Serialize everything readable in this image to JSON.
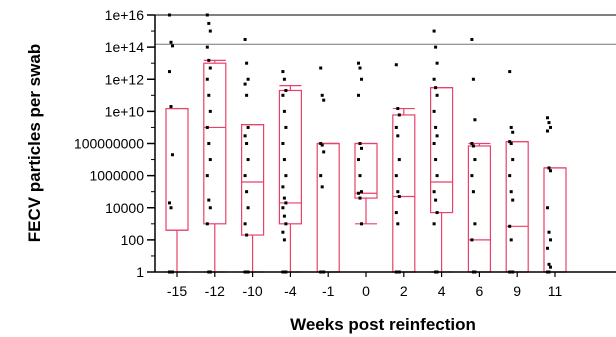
{
  "chart_data": {
    "type": "box",
    "xlabel": "Weeks post reinfection",
    "ylabel": "FECV particles per swab",
    "yscale": "log10",
    "ylim": [
      1,
      1e+16
    ],
    "yticks": [
      "1",
      "100",
      "10000",
      "1000000",
      "100000000",
      "1e+10",
      "1e+12",
      "1e+14",
      "1e+16"
    ],
    "categories": [
      "-15",
      "-12",
      "-10",
      "-4",
      "-1",
      "0",
      "2",
      "4",
      "6",
      "9",
      "11"
    ],
    "reference_line": 150000000000000.0,
    "box_color": "#e8416a",
    "boxes": [
      {
        "x": "-15",
        "whisker_low": 1,
        "q1": 400,
        "median": 400,
        "q3": 15000000000.0,
        "whisker_high": 15000000000.0,
        "points": [
          1e+16,
          200000000000000.0,
          120000000000000.0,
          3000000000000.0,
          20000000000.0,
          20000000.0,
          20000.0,
          10000.0,
          1,
          1
        ]
      },
      {
        "x": "-12",
        "whisker_low": 1,
        "q1": 1000.0,
        "median": 1000000000.0,
        "q3": 10000000000000.0,
        "whisker_high": 15000000000000.0,
        "points": [
          1e+16,
          3000000000000000.0,
          1000000000000000.0,
          100000000000000.0,
          15000000000000.0,
          5000000000000.0,
          1000000000000.0,
          100000000000.0,
          10000000000.0,
          1000000000.0,
          100000000.0,
          10000000.0,
          1000000.0,
          30000.0,
          10000.0,
          1000.0,
          1,
          1
        ]
      },
      {
        "x": "-10",
        "whisker_low": 1,
        "q1": 200,
        "median": 400000.0,
        "q3": 1500000000.0,
        "whisker_high": 1500000000.0,
        "points": [
          300000000000000.0,
          10000000000000.0,
          1000000000000.0,
          500000000000.0,
          100000000000.0,
          1000000000.0,
          300000000.0,
          100000000.0,
          10000000.0,
          1000000.0,
          100000.0,
          10000.0,
          1000.0,
          200,
          1,
          1
        ]
      },
      {
        "x": "-4",
        "whisker_low": 1,
        "q1": 1000.0,
        "median": 20000.0,
        "q3": 200000000000.0,
        "whisker_high": 400000000000.0,
        "points": [
          3000000000000.0,
          1000000000000.0,
          200000000000.0,
          100000000000.0,
          10000000000.0,
          1000000000.0,
          100000000.0,
          10000000.0,
          1000000.0,
          200000.0,
          40000.0,
          20000.0,
          10000.0,
          3000.0,
          1000.0,
          300,
          100,
          1,
          1
        ]
      },
      {
        "x": "-1",
        "whisker_low": 1,
        "q1": 1,
        "median": 100000000.0,
        "q3": 100000000.0,
        "whisker_high": 100000000.0,
        "points": [
          5000000000000.0,
          100000000000.0,
          50000000000.0,
          100000000.0,
          80000000.0,
          30000000.0,
          1000000.0,
          200000.0,
          1,
          1
        ]
      },
      {
        "x": "0",
        "whisker_low": 1000.0,
        "q1": 40000.0,
        "median": 80000.0,
        "q3": 100000000.0,
        "whisker_high": 100000000.0,
        "points": [
          10000000000000.0,
          5000000000000.0,
          1000000000000.0,
          100000000000.0,
          100000000.0,
          50000000.0,
          10000000.0,
          1000000.0,
          100000.0,
          80000.0,
          40000.0,
          1000.0
        ]
      },
      {
        "x": "2",
        "whisker_low": 1,
        "q1": 1,
        "median": 50000.0,
        "q3": 6000000000.0,
        "whisker_high": 15000000000.0,
        "points": [
          8000000000000.0,
          15000000000.0,
          6000000000.0,
          1000000000.0,
          300000000.0,
          10000000.0,
          1000000.0,
          100000.0,
          50000.0,
          5000.0,
          1000.0,
          1,
          1
        ]
      },
      {
        "x": "4",
        "whisker_low": 1,
        "q1": 5000.0,
        "median": 400000.0,
        "q3": 300000000000.0,
        "whisker_high": 300000000000.0,
        "points": [
          1000000000000000.0,
          100000000000000.0,
          10000000000000.0,
          1000000000000.0,
          300000000000.0,
          100000000000.0,
          10000000000.0,
          1000000000.0,
          300000000.0,
          100000000.0,
          10000000.0,
          1000000.0,
          100000.0,
          30000.0,
          5000.0,
          1000.0,
          1,
          1
        ]
      },
      {
        "x": "6",
        "whisker_low": 1,
        "q1": 1,
        "median": 100,
        "q3": 70000000.0,
        "whisker_high": 100000000.0,
        "points": [
          300000000000000.0,
          1000000000000.0,
          3000000000.0,
          100000000.0,
          70000000.0,
          10000000.0,
          1000000.0,
          100000.0,
          1000.0,
          100,
          1,
          1
        ]
      },
      {
        "x": "9",
        "whisker_low": 1,
        "q1": 1,
        "median": 700,
        "q3": 130000000.0,
        "whisker_high": 130000000.0,
        "points": [
          3000000000000.0,
          1000000000.0,
          500000000.0,
          130000000.0,
          100000000.0,
          10000000.0,
          1000000.0,
          100000.0,
          30000.0,
          700,
          100,
          1,
          1
        ]
      },
      {
        "x": "11",
        "whisker_low": 1,
        "q1": 1,
        "median": 3000000.0,
        "q3": 3000000.0,
        "whisker_high": 3000000.0,
        "points": [
          4000000000.0,
          2000000000.0,
          1000000000.0,
          600000000.0,
          3000000.0,
          2000000.0,
          10000.0,
          300,
          100,
          30,
          3,
          2,
          1,
          1
        ]
      }
    ]
  }
}
